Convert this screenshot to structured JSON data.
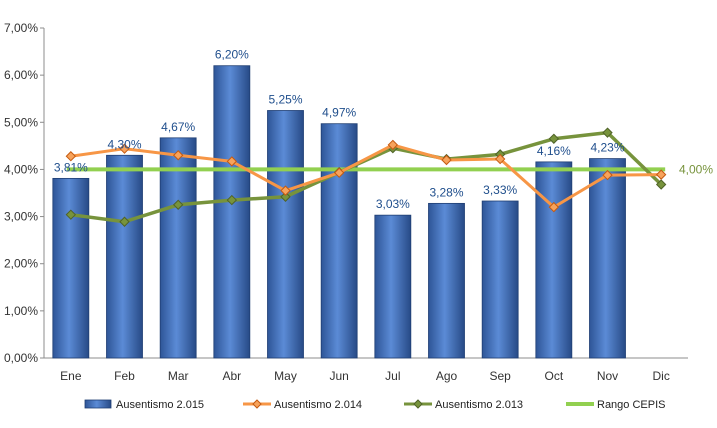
{
  "chart_data": {
    "type": "bar",
    "categories": [
      "Ene",
      "Feb",
      "Mar",
      "Abr",
      "May",
      "Jun",
      "Jul",
      "Ago",
      "Sep",
      "Oct",
      "Nov",
      "Dic"
    ],
    "y_ticks": [
      "0,00%",
      "1,00%",
      "2,00%",
      "3,00%",
      "4,00%",
      "5,00%",
      "6,00%",
      "7,00%"
    ],
    "ylim": [
      0,
      7
    ],
    "grid": false,
    "legend_position": "bottom",
    "series": [
      {
        "name": "Ausentismo 2.015",
        "kind": "bar",
        "color": "#4472C4",
        "values": [
          3.81,
          4.3,
          4.67,
          6.2,
          5.25,
          4.97,
          3.03,
          3.28,
          3.33,
          4.16,
          4.23,
          null
        ],
        "labels": [
          "3,81%",
          "4,30%",
          "4,67%",
          "6,20%",
          "5,25%",
          "4,97%",
          "3,03%",
          "3,28%",
          "3,33%",
          "4,16%",
          "4,23%",
          null
        ]
      },
      {
        "name": "Ausentismo 2.014",
        "kind": "line",
        "color": "#F79646",
        "values": [
          4.28,
          4.44,
          4.3,
          4.17,
          3.55,
          3.93,
          4.52,
          4.2,
          4.22,
          3.2,
          3.88,
          3.89
        ]
      },
      {
        "name": "Ausentismo 2.013",
        "kind": "line",
        "color": "#77933C",
        "values": [
          3.04,
          2.89,
          3.25,
          3.35,
          3.42,
          3.94,
          4.45,
          4.22,
          4.32,
          4.65,
          4.78,
          3.68
        ]
      },
      {
        "name": "Rango CEPIS",
        "kind": "line",
        "color": "#92D050",
        "values": [
          4.0,
          4.0,
          4.0,
          4.0,
          4.0,
          4.0,
          4.0,
          4.0,
          4.0,
          4.0,
          4.0,
          4.0
        ],
        "end_label": "4,00%"
      }
    ]
  }
}
